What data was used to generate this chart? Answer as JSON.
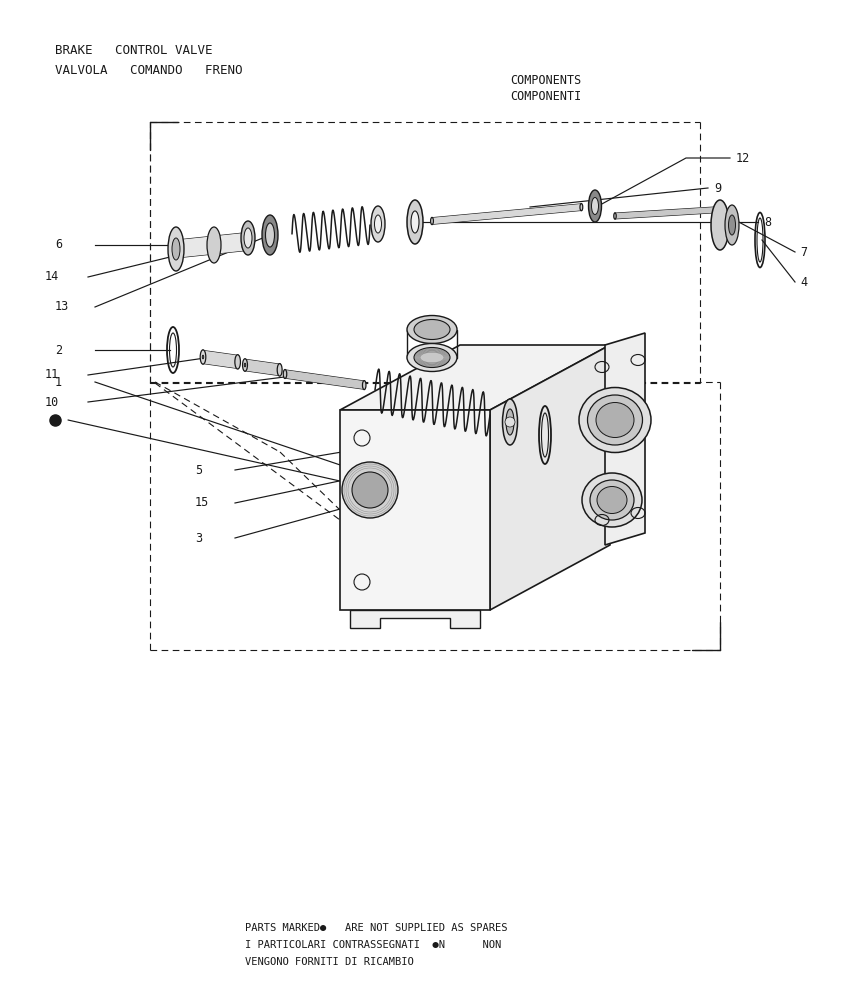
{
  "title_line1": "BRAKE   CONTROL VALVE",
  "title_line2": "VALVOLA   COMANDO   FRENO",
  "subtitle_line1": "COMPONENTS",
  "subtitle_line2": "COMPONENTI",
  "footer_line1": "PARTS MARKED●   ARE NOT SUPPLIED AS SPARES",
  "footer_line2": "I PARTICOLARI CONTRASSEGNATI  ●N      NON",
  "footer_line3": "VENGONO FORNITI DI RICAMBIO",
  "bg_color": "#ffffff",
  "lc": "#1a1a1a"
}
